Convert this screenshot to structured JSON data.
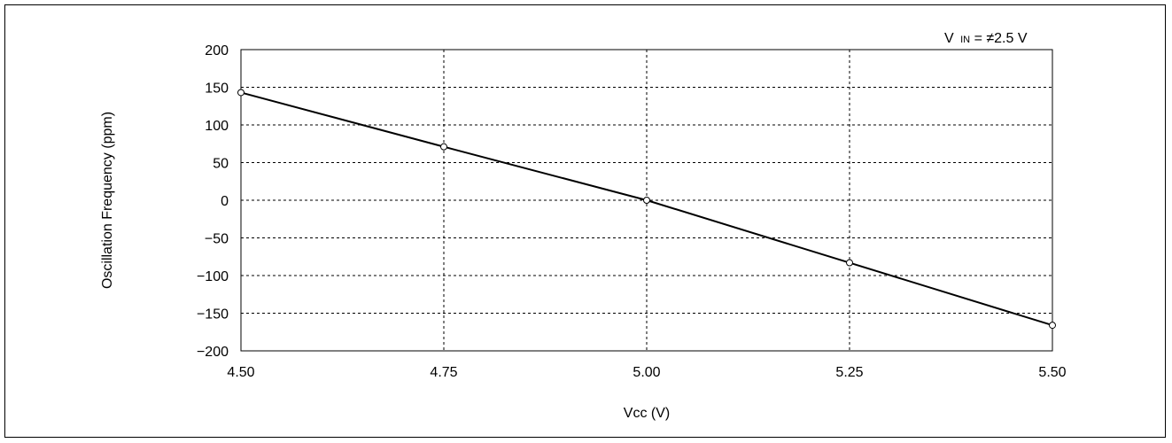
{
  "chart_data": {
    "type": "line",
    "title": "",
    "xlabel": "Vcc (V)",
    "ylabel": "Oscillation Frequency (ppm)",
    "xlim": [
      4.5,
      5.5
    ],
    "ylim": [
      -200,
      200
    ],
    "x_ticks": [
      4.5,
      4.75,
      5.0,
      5.25,
      5.5
    ],
    "x_tick_labels": [
      "4.50",
      "4.75",
      "5.00",
      "5.25",
      "5.50"
    ],
    "y_ticks": [
      200,
      150,
      100,
      50,
      0,
      -50,
      -100,
      -150,
      -200
    ],
    "y_tick_labels": [
      "200",
      "150",
      "100",
      "50",
      "0",
      "−50",
      "−100",
      "−150",
      "−200"
    ],
    "grid": true,
    "legend": "none",
    "annotation": {
      "prefix": "V",
      "subscript": "IN",
      "suffix": " = ≠2.5 V"
    },
    "series": [
      {
        "x": [
          4.5,
          4.75,
          5.0,
          5.25,
          5.5
        ],
        "y": [
          143,
          71,
          0,
          -83,
          -166
        ],
        "color": "#000000",
        "marker": "hollow-circle"
      }
    ]
  }
}
